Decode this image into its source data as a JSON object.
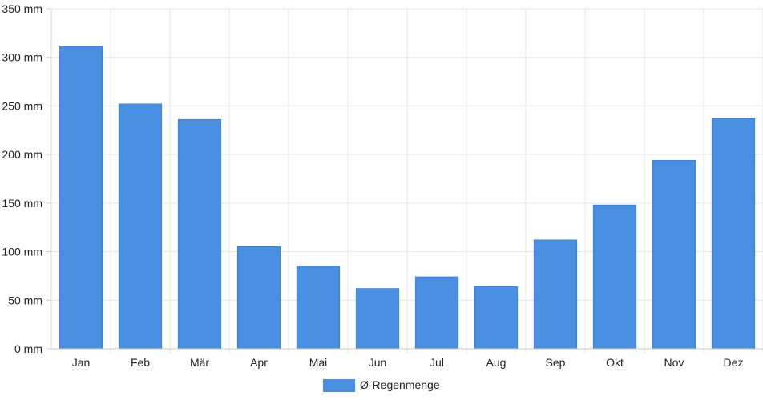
{
  "chart_data": {
    "type": "bar",
    "categories": [
      "Jan",
      "Feb",
      "Mär",
      "Apr",
      "Mai",
      "Jun",
      "Jul",
      "Aug",
      "Sep",
      "Okt",
      "Nov",
      "Dez"
    ],
    "series": [
      {
        "name": "Ø-Regenmenge",
        "values": [
          311,
          252,
          236,
          105,
          85,
          62,
          74,
          64,
          112,
          148,
          194,
          237
        ],
        "color": "#4a90e2"
      }
    ],
    "y_ticks": [
      "0 mm",
      "50 mm",
      "100 mm",
      "150 mm",
      "200 mm",
      "250 mm",
      "300 mm",
      "350 mm"
    ],
    "ylim": [
      0,
      350
    ],
    "ytick_step": 50,
    "grid": true,
    "legend_position": "bottom-center"
  }
}
